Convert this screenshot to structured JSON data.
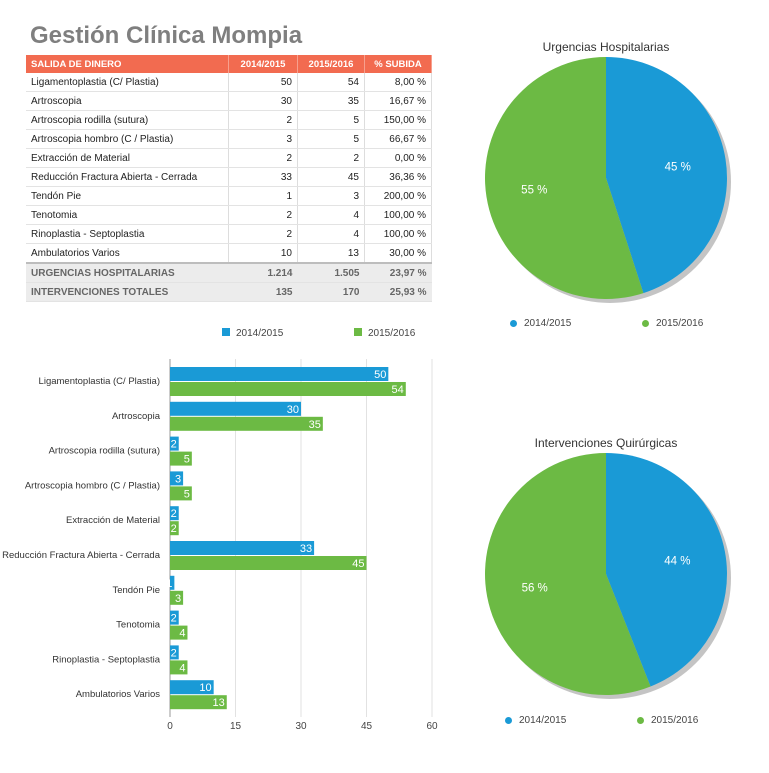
{
  "page": {
    "title": "Gestión Clínica Mompia"
  },
  "table": {
    "headers": [
      "SALIDA DE DINERO",
      "2014/2015",
      "2015/2016",
      "% SUBIDA"
    ],
    "rows": [
      [
        "Ligamentoplastia (C/ Plastia)",
        "50",
        "54",
        "8,00 %"
      ],
      [
        "Artroscopia",
        "30",
        "35",
        "16,67 %"
      ],
      [
        "Artroscopia rodilla (sutura)",
        "2",
        "5",
        "150,00 %"
      ],
      [
        "Artroscopia hombro (C / Plastia)",
        "3",
        "5",
        "66,67 %"
      ],
      [
        "Extracción de Material",
        "2",
        "2",
        "0,00 %"
      ],
      [
        "Reducción Fractura Abierta - Cerrada",
        "33",
        "45",
        "36,36 %"
      ],
      [
        "Tendón Pie",
        "1",
        "3",
        "200,00 %"
      ],
      [
        "Tenotomia",
        "2",
        "4",
        "100,00 %"
      ],
      [
        "Rinoplastia - Septoplastia",
        "2",
        "4",
        "100,00 %"
      ],
      [
        "Ambulatorios Varios",
        "10",
        "13",
        "30,00 %"
      ]
    ],
    "totals": [
      [
        "URGENCIAS HOSPITALARIAS",
        "1.214",
        "1.505",
        "23,97 %"
      ],
      [
        "INTERVENCIONES TOTALES",
        "135",
        "170",
        "25,93 %"
      ]
    ]
  },
  "colors": {
    "blue": "#1a9ad6",
    "green": "#6cba44",
    "header": "#f26b50"
  },
  "chart_data": [
    {
      "type": "bar",
      "orientation": "horizontal",
      "categories": [
        "Ligamentoplastia (C/ Plastia)",
        "Artroscopia",
        "Artroscopia rodilla (sutura)",
        "Artroscopia hombro (C / Plastia)",
        "Extracción de Material",
        "Reducción Fractura Abierta - Cerrada",
        "Tendón Pie",
        "Tenotomia",
        "Rinoplastia - Septoplastia",
        "Ambulatorios Varios"
      ],
      "series": [
        {
          "name": "2014/2015",
          "values": [
            50,
            30,
            2,
            3,
            2,
            33,
            1,
            2,
            2,
            10
          ]
        },
        {
          "name": "2015/2016",
          "values": [
            54,
            35,
            5,
            5,
            2,
            45,
            3,
            4,
            4,
            13
          ]
        }
      ],
      "xlim": [
        0,
        60
      ],
      "xticks": [
        0,
        15,
        30,
        45,
        60
      ],
      "grid": true,
      "legend": "top"
    },
    {
      "type": "pie",
      "title": "Urgencias Hospitalarias",
      "labels": [
        "2014/2015",
        "2015/2016"
      ],
      "values": [
        45,
        55
      ],
      "value_labels": [
        "45 %",
        "55 %"
      ],
      "legend": "bottom"
    },
    {
      "type": "pie",
      "title": "Intervenciones Quirúrgicas",
      "labels": [
        "2014/2015",
        "2015/2016"
      ],
      "values": [
        44,
        56
      ],
      "value_labels": [
        "44 %",
        "56 %"
      ],
      "legend": "bottom"
    }
  ]
}
